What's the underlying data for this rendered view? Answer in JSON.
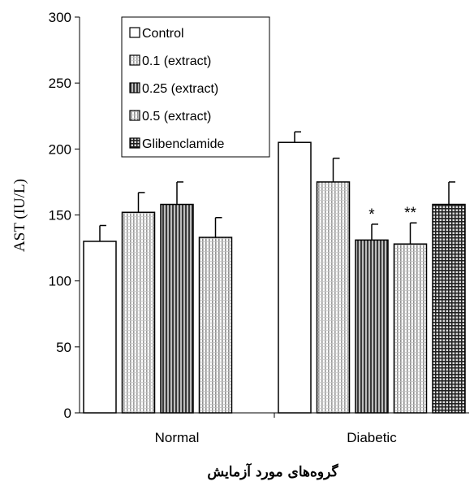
{
  "chart_data": {
    "type": "bar",
    "categories": [
      "Normal",
      "Diabetic"
    ],
    "ylabel": "AST (IU/L)",
    "xlabel": "گروه‌های مورد آزمایش",
    "ylim": [
      0,
      300
    ],
    "yticks": [
      0,
      50,
      100,
      150,
      200,
      250,
      300
    ],
    "legend_position": "top-left",
    "grid": false,
    "series": [
      {
        "name": "Control",
        "values": [
          130,
          205
        ],
        "errors": [
          12,
          8
        ],
        "significance": [
          "",
          ""
        ],
        "pattern": "white"
      },
      {
        "name": "0.1 (extract)",
        "values": [
          152,
          175
        ],
        "errors": [
          15,
          18
        ],
        "significance": [
          "",
          ""
        ],
        "pattern": "light-vertical"
      },
      {
        "name": "0.25 (extract)",
        "values": [
          158,
          131
        ],
        "errors": [
          17,
          12
        ],
        "significance": [
          "",
          "*"
        ],
        "pattern": "dense-vertical"
      },
      {
        "name": "0.5 (extract)",
        "values": [
          133,
          128
        ],
        "errors": [
          15,
          16
        ],
        "significance": [
          "",
          "**"
        ],
        "pattern": "light-vertical-2"
      },
      {
        "name": "Glibenclamide",
        "values": [
          null,
          158
        ],
        "errors": [
          null,
          17
        ],
        "significance": [
          "",
          ""
        ],
        "pattern": "checker"
      }
    ]
  }
}
